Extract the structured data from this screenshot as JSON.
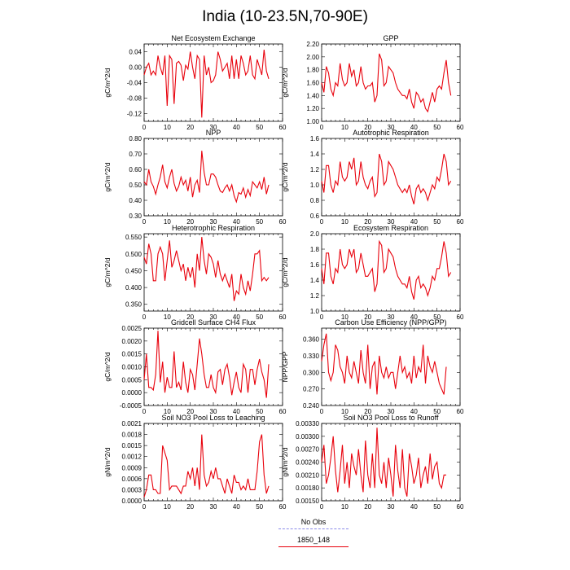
{
  "title": "India (10-23.5N,70-90E)",
  "chart_data": [
    {
      "type": "line",
      "title": "Net Ecosystem Exchange",
      "ylabel": "gC/m^2/d",
      "xlim": [
        0,
        60
      ],
      "ylim": [
        -0.14,
        0.06
      ],
      "xticks": [
        0,
        10,
        20,
        30,
        40,
        50,
        60
      ],
      "yticks": [
        0.04,
        0.0,
        -0.04,
        -0.08,
        -0.12
      ],
      "yticklabels": [
        "0.04",
        "0.00",
        "-0.04",
        "-0.08",
        "-0.12"
      ],
      "series": [
        {
          "values": [
            -0.02,
            0.0,
            0.01,
            -0.02,
            -0.01,
            -0.02,
            0.03,
            0.0,
            -0.02,
            0.03,
            -0.1,
            0.03,
            0.02,
            -0.095,
            0.01,
            0.015,
            0.005,
            -0.035,
            0.005,
            -0.005,
            0.04,
            0.0,
            -0.03,
            0.03,
            0.02,
            -0.13,
            0.03,
            -0.02,
            0.0,
            -0.04,
            -0.035,
            -0.02,
            0.04,
            0.02,
            -0.01,
            0.0,
            0.01,
            -0.03,
            0.03,
            -0.03,
            0.02,
            -0.03,
            0.03,
            0.01,
            -0.02,
            -0.01,
            0.03,
            -0.02,
            -0.03,
            0.02,
            0.0,
            -0.02,
            0.045,
            -0.01,
            -0.03
          ]
        }
      ]
    },
    {
      "type": "line",
      "title": "GPP",
      "ylabel": "gC/m^2/d",
      "xlim": [
        0,
        60
      ],
      "ylim": [
        1.0,
        2.2
      ],
      "xticks": [
        0,
        10,
        20,
        30,
        40,
        50,
        60
      ],
      "yticks": [
        2.2,
        2.0,
        1.8,
        1.6,
        1.4,
        1.2,
        1.0
      ],
      "yticklabels": [
        "2.20",
        "2.00",
        "1.80",
        "1.60",
        "1.40",
        "1.20",
        "1.00"
      ],
      "series": [
        {
          "values": [
            1.6,
            1.45,
            1.85,
            1.75,
            1.5,
            1.4,
            1.6,
            1.55,
            1.9,
            1.65,
            1.55,
            1.6,
            1.9,
            1.7,
            1.8,
            1.55,
            1.6,
            1.85,
            1.6,
            1.5,
            1.55,
            1.55,
            1.6,
            1.3,
            1.4,
            2.05,
            1.95,
            1.55,
            1.6,
            1.85,
            1.8,
            1.75,
            1.6,
            1.5,
            1.45,
            1.4,
            1.4,
            1.35,
            1.5,
            1.3,
            1.2,
            1.45,
            1.4,
            1.3,
            1.35,
            1.2,
            1.15,
            1.3,
            1.45,
            1.3,
            1.5,
            1.55,
            1.5,
            1.75,
            1.95,
            1.6,
            1.4
          ]
        }
      ]
    },
    {
      "type": "line",
      "title": "NPP",
      "ylabel": "gC/m^2/d",
      "xlim": [
        0,
        60
      ],
      "ylim": [
        0.3,
        0.8
      ],
      "xticks": [
        0,
        10,
        20,
        30,
        40,
        50,
        60
      ],
      "yticks": [
        0.8,
        0.7,
        0.6,
        0.5,
        0.4,
        0.3
      ],
      "yticklabels": [
        "0.80",
        "0.70",
        "0.60",
        "0.50",
        "0.40",
        "0.30"
      ],
      "series": [
        {
          "values": [
            0.52,
            0.5,
            0.6,
            0.52,
            0.49,
            0.44,
            0.5,
            0.55,
            0.63,
            0.52,
            0.48,
            0.55,
            0.6,
            0.51,
            0.46,
            0.49,
            0.55,
            0.5,
            0.53,
            0.46,
            0.55,
            0.42,
            0.5,
            0.53,
            0.45,
            0.72,
            0.58,
            0.5,
            0.5,
            0.57,
            0.57,
            0.55,
            0.5,
            0.46,
            0.45,
            0.48,
            0.5,
            0.46,
            0.5,
            0.43,
            0.39,
            0.45,
            0.44,
            0.48,
            0.42,
            0.47,
            0.43,
            0.52,
            0.5,
            0.48,
            0.52,
            0.47,
            0.55,
            0.44,
            0.5
          ]
        }
      ]
    },
    {
      "type": "line",
      "title": "Autotrophic Respiration",
      "ylabel": "gC/m^2/d",
      "xlim": [
        0,
        60
      ],
      "ylim": [
        0.6,
        1.6
      ],
      "xticks": [
        0,
        10,
        20,
        30,
        40,
        50,
        60
      ],
      "yticks": [
        1.6,
        1.4,
        1.2,
        1.0,
        0.8,
        0.6
      ],
      "yticklabels": [
        "1.6",
        "1.4",
        "1.2",
        "1.0",
        "0.8",
        "0.6"
      ],
      "series": [
        {
          "values": [
            1.05,
            0.9,
            1.25,
            1.25,
            1.0,
            0.9,
            1.05,
            1.0,
            1.3,
            1.1,
            1.05,
            1.1,
            1.3,
            1.2,
            1.35,
            1.0,
            1.05,
            1.3,
            1.1,
            1.0,
            0.95,
            1.05,
            1.1,
            0.85,
            0.9,
            1.4,
            1.3,
            1.0,
            1.05,
            1.3,
            1.25,
            1.2,
            1.1,
            1.0,
            0.95,
            0.9,
            0.95,
            0.9,
            1.0,
            0.85,
            0.75,
            0.95,
            1.0,
            0.9,
            0.95,
            0.9,
            0.8,
            0.9,
            1.0,
            0.95,
            1.1,
            1.05,
            1.2,
            1.4,
            1.3,
            1.0,
            1.05
          ]
        }
      ]
    },
    {
      "type": "line",
      "title": "Heterotrophic Respiration",
      "ylabel": "gC/m^2/d",
      "xlim": [
        0,
        60
      ],
      "ylim": [
        0.33,
        0.56
      ],
      "xticks": [
        0,
        10,
        20,
        30,
        40,
        50,
        60
      ],
      "yticks": [
        0.55,
        0.5,
        0.45,
        0.4,
        0.35
      ],
      "yticklabels": [
        "0.550",
        "0.500",
        "0.450",
        "0.400",
        "0.350"
      ],
      "series": [
        {
          "values": [
            0.49,
            0.47,
            0.53,
            0.5,
            0.42,
            0.42,
            0.5,
            0.52,
            0.5,
            0.42,
            0.48,
            0.54,
            0.46,
            0.48,
            0.51,
            0.48,
            0.45,
            0.47,
            0.42,
            0.46,
            0.43,
            0.46,
            0.4,
            0.5,
            0.45,
            0.55,
            0.48,
            0.44,
            0.5,
            0.49,
            0.47,
            0.43,
            0.48,
            0.44,
            0.42,
            0.44,
            0.42,
            0.4,
            0.44,
            0.36,
            0.39,
            0.38,
            0.44,
            0.4,
            0.38,
            0.42,
            0.39,
            0.44,
            0.5,
            0.5,
            0.51,
            0.42,
            0.43,
            0.42,
            0.43
          ]
        }
      ]
    },
    {
      "type": "line",
      "title": "Ecosystem Respiration",
      "ylabel": "gC/m^2/d",
      "xlim": [
        0,
        60
      ],
      "ylim": [
        1.0,
        2.0
      ],
      "xticks": [
        0,
        10,
        20,
        30,
        40,
        50,
        60
      ],
      "yticks": [
        2.0,
        1.8,
        1.6,
        1.4,
        1.2,
        1.0
      ],
      "yticklabels": [
        "2.0",
        "1.8",
        "1.6",
        "1.4",
        "1.2",
        "1.0"
      ],
      "series": [
        {
          "values": [
            1.55,
            1.35,
            1.75,
            1.75,
            1.45,
            1.35,
            1.55,
            1.5,
            1.8,
            1.6,
            1.55,
            1.6,
            1.8,
            1.7,
            1.8,
            1.5,
            1.55,
            1.75,
            1.6,
            1.45,
            1.45,
            1.5,
            1.55,
            1.25,
            1.35,
            1.9,
            1.85,
            1.5,
            1.55,
            1.8,
            1.75,
            1.7,
            1.55,
            1.45,
            1.4,
            1.35,
            1.35,
            1.3,
            1.45,
            1.25,
            1.15,
            1.4,
            1.45,
            1.3,
            1.35,
            1.3,
            1.2,
            1.3,
            1.45,
            1.4,
            1.55,
            1.55,
            1.7,
            1.9,
            1.75,
            1.45,
            1.5
          ]
        }
      ]
    },
    {
      "type": "line",
      "title": "Gridcell Surface CH4 Flux",
      "ylabel": "gC/m^2/d",
      "xlim": [
        0,
        60
      ],
      "ylim": [
        -0.0005,
        0.0025
      ],
      "xticks": [
        0,
        10,
        20,
        30,
        40,
        50,
        60
      ],
      "yticks": [
        0.0025,
        0.002,
        0.0015,
        0.001,
        0.0005,
        0.0,
        -0.0005
      ],
      "yticklabels": [
        "0.0025",
        "0.0020",
        "0.0015",
        "0.0010",
        "0.0005",
        "0.0000",
        "-0.0005"
      ],
      "series": [
        {
          "values": [
            0.0005,
            0.0015,
            0.0002,
            0.0002,
            0.0001,
            0.0007,
            0.0024,
            0.0004,
            0.0012,
            0.0,
            0.0006,
            0.0002,
            0.0002,
            0.0016,
            0.0002,
            0.0004,
            0.0001,
            0.0012,
            0.0004,
            0.0,
            0.0009,
            0.0007,
            0.0001,
            0.0011,
            0.0021,
            0.0015,
            0.0007,
            0.0002,
            0.0002,
            0.0007,
            0.0002,
            0.0,
            0.0008,
            0.0009,
            0.0003,
            0.0009,
            0.0011,
            0.0006,
            -0.0001,
            0.0004,
            0.0008,
            0.0002,
            0.0,
            0.0011,
            0.0009,
            0.0,
            0.0009,
            0.0009,
            0.0003,
            0.0009,
            0.0013,
            0.0008,
            0.0005,
            -0.0002,
            0.0011
          ]
        }
      ]
    },
    {
      "type": "line",
      "title": "Carbon Use Efficiency (NPP/GPP)",
      "ylabel": "NPP/GPP",
      "xlim": [
        0,
        60
      ],
      "ylim": [
        0.24,
        0.38
      ],
      "xticks": [
        0,
        10,
        20,
        30,
        40,
        50,
        60
      ],
      "yticks": [
        0.36,
        0.33,
        0.3,
        0.27,
        0.24
      ],
      "yticklabels": [
        "0.360",
        "0.330",
        "0.300",
        "0.270",
        "0.240"
      ],
      "series": [
        {
          "values": [
            0.32,
            0.35,
            0.37,
            0.3,
            0.285,
            0.3,
            0.35,
            0.34,
            0.31,
            0.3,
            0.28,
            0.33,
            0.3,
            0.29,
            0.32,
            0.3,
            0.28,
            0.34,
            0.3,
            0.28,
            0.35,
            0.27,
            0.31,
            0.32,
            0.26,
            0.33,
            0.3,
            0.29,
            0.31,
            0.29,
            0.3,
            0.3,
            0.27,
            0.3,
            0.33,
            0.3,
            0.31,
            0.29,
            0.3,
            0.28,
            0.33,
            0.29,
            0.31,
            0.3,
            0.35,
            0.28,
            0.33,
            0.31,
            0.3,
            0.32,
            0.3,
            0.28,
            0.27,
            0.26,
            0.31
          ]
        }
      ]
    },
    {
      "type": "line",
      "title": "Soil NO3 Pool Loss to Leaching",
      "ylabel": "gN/m^2/d",
      "xlim": [
        0,
        60
      ],
      "ylim": [
        0.0,
        0.0021
      ],
      "xticks": [
        0,
        10,
        20,
        30,
        40,
        50,
        60
      ],
      "yticks": [
        0.0021,
        0.0018,
        0.0015,
        0.0012,
        0.0009,
        0.0006,
        0.0003,
        0.0
      ],
      "yticklabels": [
        "0.0021",
        "0.0018",
        "0.0015",
        "0.0012",
        "0.0009",
        "0.0006",
        "0.0003",
        "0.0000"
      ],
      "series": [
        {
          "values": [
            0.0001,
            0.0003,
            0.0007,
            0.0007,
            0.0003,
            0.0003,
            0.0002,
            0.0002,
            0.0015,
            0.0013,
            0.0011,
            0.0003,
            0.0004,
            0.0004,
            0.0004,
            0.0003,
            0.0002,
            0.0004,
            0.0004,
            0.0008,
            0.0006,
            0.0009,
            0.0004,
            0.0009,
            0.0003,
            0.0018,
            0.0007,
            0.0004,
            0.0005,
            0.0008,
            0.0006,
            0.0009,
            0.0006,
            0.0006,
            0.0004,
            0.0002,
            0.0006,
            0.0004,
            0.0002,
            0.0007,
            0.0005,
            0.0005,
            0.0003,
            0.0004,
            0.0003,
            0.0006,
            0.0003,
            0.0003,
            0.0003,
            0.0008,
            0.0016,
            0.0018,
            0.0007,
            0.0002,
            0.0004
          ]
        }
      ]
    },
    {
      "type": "line",
      "title": "Soil NO3 Pool Loss to Runoff",
      "ylabel": "gN/m^2/d",
      "xlim": [
        0,
        60
      ],
      "ylim": [
        0.0015,
        0.0033
      ],
      "xticks": [
        0,
        10,
        20,
        30,
        40,
        50,
        60
      ],
      "yticks": [
        0.0033,
        0.003,
        0.0027,
        0.0024,
        0.0021,
        0.0018,
        0.0015
      ],
      "yticklabels": [
        "0.00330",
        "0.00300",
        "0.00270",
        "0.00240",
        "0.00210",
        "0.00180",
        "0.00150"
      ],
      "series": [
        {
          "values": [
            0.0024,
            0.0028,
            0.0019,
            0.0021,
            0.0025,
            0.003,
            0.0022,
            0.0017,
            0.0022,
            0.0028,
            0.0019,
            0.0024,
            0.0018,
            0.0026,
            0.0023,
            0.0021,
            0.0027,
            0.0021,
            0.0017,
            0.0029,
            0.0021,
            0.0018,
            0.0026,
            0.0018,
            0.0032,
            0.0021,
            0.0019,
            0.0024,
            0.0018,
            0.0025,
            0.0021,
            0.0016,
            0.0028,
            0.0022,
            0.0018,
            0.0027,
            0.0018,
            0.0016,
            0.0026,
            0.0023,
            0.0019,
            0.0021,
            0.0025,
            0.0018,
            0.0021,
            0.0023,
            0.0019,
            0.0026,
            0.002,
            0.0023,
            0.0024,
            0.0019,
            0.0018,
            0.0021,
            0.0021
          ]
        }
      ]
    }
  ],
  "legend": {
    "items": [
      {
        "label": "No Obs",
        "color": "#8a8ae8",
        "dash": true
      },
      {
        "label": "1850_148",
        "color": "#e8000b",
        "dash": false
      }
    ]
  }
}
